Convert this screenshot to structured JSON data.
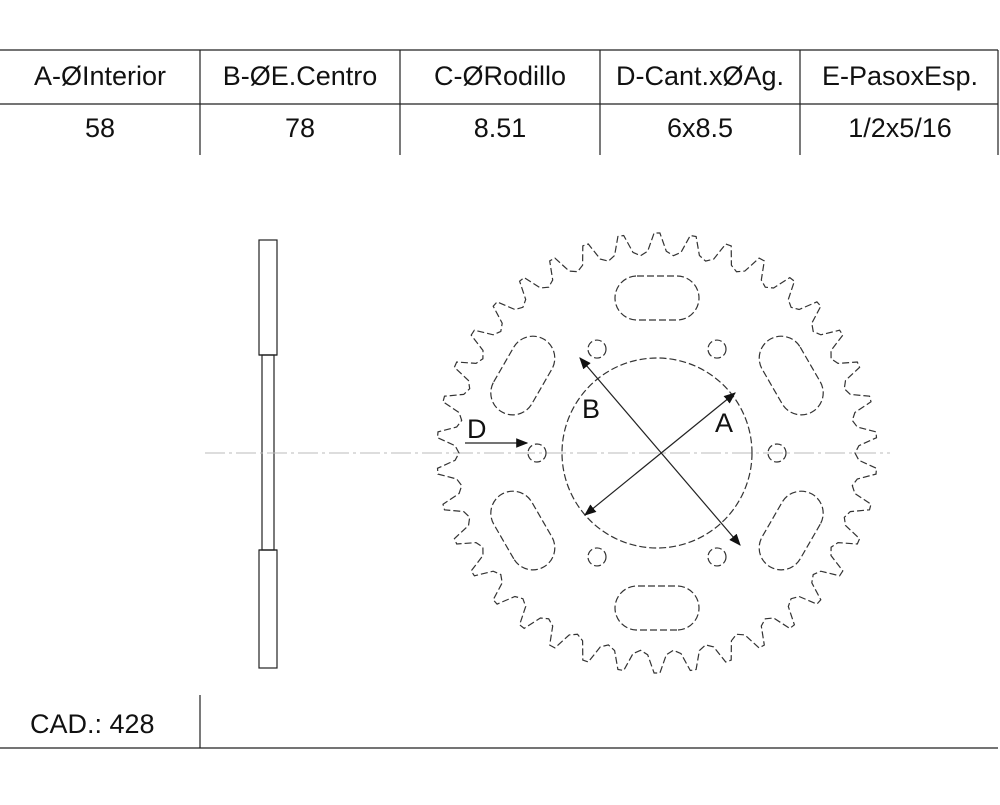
{
  "table": {
    "headers": [
      "A-ØInterior",
      "B-ØE.Centro",
      "C-ØRodillo",
      "D-Cant.xØAg.",
      "E-PasoxEsp."
    ],
    "rows": [
      [
        "58",
        "78",
        "8.51",
        "6x8.5",
        "1/2x5/16"
      ]
    ]
  },
  "drawing": {
    "labels": {
      "a": "A",
      "b": "B",
      "d": "D"
    }
  },
  "footer": {
    "cad": "CAD.: 428"
  }
}
